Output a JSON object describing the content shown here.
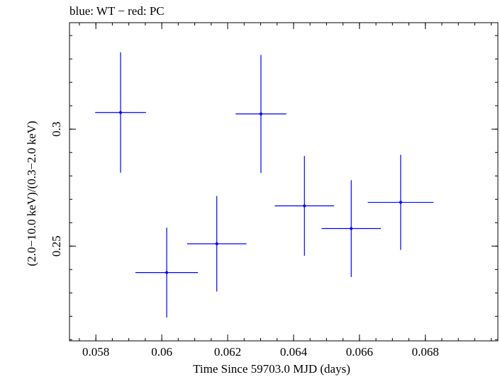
{
  "chart_data": {
    "type": "scatter",
    "title": "blue: WT − red: PC",
    "xlabel": "Time Since 59703.0 MJD (days)",
    "ylabel": "(2.0−10.0 keV)/(0.3−2.0 keV)",
    "xlim": [
      0.0572,
      0.0702
    ],
    "ylim": [
      0.2095,
      0.3455
    ],
    "x_ticks": [
      0.058,
      0.06,
      0.062,
      0.064,
      0.066,
      0.068
    ],
    "x_tick_labels": [
      "0.058",
      "0.06",
      "0.062",
      "0.064",
      "0.066",
      "0.068"
    ],
    "y_ticks": [
      0.25,
      0.3
    ],
    "y_tick_labels": [
      "0.25",
      "0.3"
    ],
    "grid": false,
    "color": "#0000ff",
    "points": [
      {
        "x": 0.05875,
        "xerr": 0.00077,
        "y": 0.3071,
        "yerr": 0.0257
      },
      {
        "x": 0.06015,
        "xerr": 0.00095,
        "y": 0.2387,
        "yerr": 0.0192
      },
      {
        "x": 0.06167,
        "xerr": 0.0009,
        "y": 0.251,
        "yerr": 0.0204
      },
      {
        "x": 0.06301,
        "xerr": 0.00077,
        "y": 0.3065,
        "yerr": 0.0252
      },
      {
        "x": 0.06433,
        "xerr": 0.0009,
        "y": 0.2672,
        "yerr": 0.0213
      },
      {
        "x": 0.06575,
        "xerr": 0.0009,
        "y": 0.2575,
        "yerr": 0.0207
      },
      {
        "x": 0.06725,
        "xerr": 0.001,
        "y": 0.2687,
        "yerr": 0.0203
      }
    ]
  }
}
